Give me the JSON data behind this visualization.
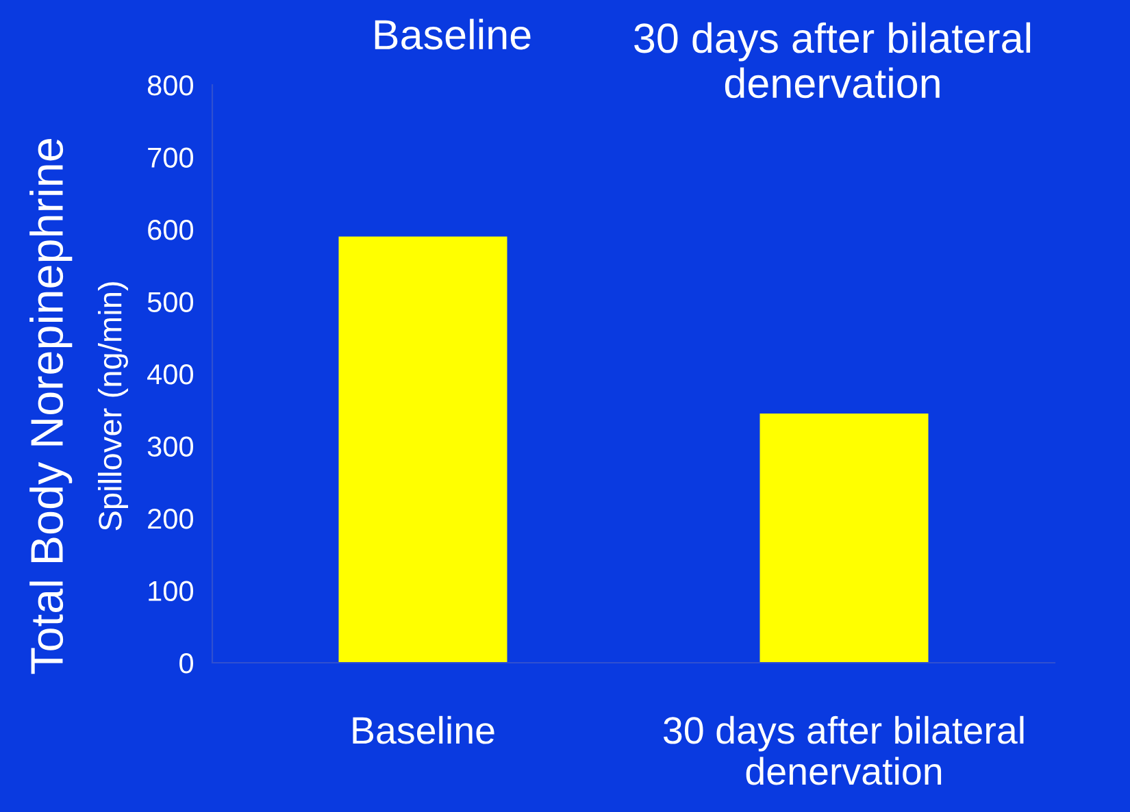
{
  "chart_data": {
    "type": "bar",
    "categories": [
      "Baseline",
      "30 days after bilateral\ndenervation"
    ],
    "values": [
      590,
      345
    ],
    "color": "#ffff00",
    "ylabel": "Total Body Norepinephrine\nSpillover (ng/min)",
    "ylim": [
      0,
      800
    ],
    "yticks": [
      0,
      100,
      200,
      300,
      400,
      500,
      600,
      700,
      800
    ],
    "grid": false,
    "legend": false,
    "annotations": [
      "Baseline",
      "30 days after bilateral\ndenervation"
    ]
  }
}
